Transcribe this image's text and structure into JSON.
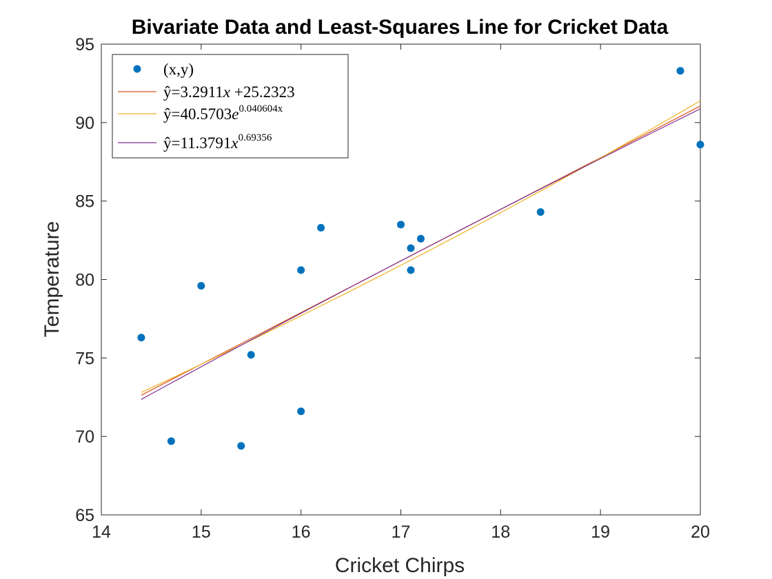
{
  "chart_data": {
    "type": "scatter",
    "title": "Bivariate Data and Least-Squares Line for Cricket Data",
    "xlabel": "Cricket Chirps",
    "ylabel": "Temperature",
    "xlim": [
      14,
      20
    ],
    "ylim": [
      65,
      95
    ],
    "xticks": [
      14,
      15,
      16,
      17,
      18,
      19,
      20
    ],
    "yticks": [
      65,
      70,
      75,
      80,
      85,
      90,
      95
    ],
    "grid": false,
    "legend_position": "top-left",
    "colors": {
      "points": "#0072BD",
      "linear": "#D95319",
      "exponential": "#EDB120",
      "power": "#7E2F8E",
      "axes": "#262626"
    },
    "scatter": {
      "name": "(x,y)",
      "points": [
        {
          "x": 14.4,
          "y": 76.3
        },
        {
          "x": 14.7,
          "y": 69.7
        },
        {
          "x": 15.0,
          "y": 79.6
        },
        {
          "x": 15.4,
          "y": 69.4
        },
        {
          "x": 15.5,
          "y": 75.2
        },
        {
          "x": 16.0,
          "y": 71.6
        },
        {
          "x": 16.0,
          "y": 80.6
        },
        {
          "x": 16.2,
          "y": 83.3
        },
        {
          "x": 17.0,
          "y": 83.5
        },
        {
          "x": 17.1,
          "y": 80.6
        },
        {
          "x": 17.1,
          "y": 82.0
        },
        {
          "x": 17.2,
          "y": 82.6
        },
        {
          "x": 18.4,
          "y": 84.3
        },
        {
          "x": 19.8,
          "y": 93.3
        },
        {
          "x": 20.0,
          "y": 88.6
        }
      ]
    },
    "fits": [
      {
        "key": "linear",
        "model": "linear",
        "a": 3.2911,
        "b": 25.2323,
        "x_range": [
          14.4,
          20.0
        ],
        "label_prefix": "ŷ=3.2911",
        "label_var": "x",
        "label_suffix": " +25.2323",
        "label_exp": ""
      },
      {
        "key": "exponential",
        "model": "exponential",
        "a": 40.5703,
        "b": 0.040604,
        "x_range": [
          14.4,
          20.0
        ],
        "label_prefix": "ŷ=40.5703",
        "label_var": "e",
        "label_suffix": "",
        "label_exp": "0.040604x"
      },
      {
        "key": "power",
        "model": "power",
        "a": 11.3791,
        "b": 0.69356,
        "x_range": [
          14.4,
          20.0
        ],
        "label_prefix": "ŷ=11.3791",
        "label_var": "x",
        "label_suffix": "",
        "label_exp": "0.69356"
      }
    ]
  }
}
